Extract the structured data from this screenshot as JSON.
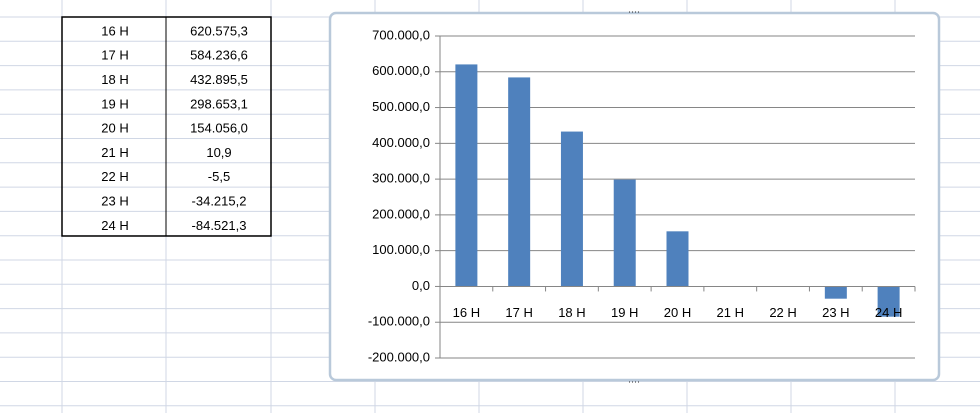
{
  "table": {
    "rows": [
      [
        "16 H",
        "620.575,3"
      ],
      [
        "17 H",
        "584.236,6"
      ],
      [
        "18 H",
        "432.895,5"
      ],
      [
        "19 H",
        "298.653,1"
      ],
      [
        "20 H",
        "154.056,0"
      ],
      [
        "21 H",
        "10,9"
      ],
      [
        "22 H",
        "-5,5"
      ],
      [
        "23 H",
        "-34.215,2"
      ],
      [
        "24 H",
        "-84.521,3"
      ]
    ]
  },
  "chart_data": {
    "type": "bar",
    "categories": [
      "16 H",
      "17 H",
      "18 H",
      "19 H",
      "20 H",
      "21 H",
      "22 H",
      "23 H",
      "24 H"
    ],
    "values": [
      620575.3,
      584236.6,
      432895.5,
      298653.1,
      154056.0,
      10.9,
      -5.5,
      -34215.2,
      -84521.3
    ],
    "color": "#4f81bd",
    "ylim": [
      -200000,
      700000
    ],
    "yticks": [
      {
        "value": -200000,
        "label": "-200.000,0"
      },
      {
        "value": -100000,
        "label": "-100.000,0"
      },
      {
        "value": 0,
        "label": "0,0"
      },
      {
        "value": 100000,
        "label": "100.000,0"
      },
      {
        "value": 200000,
        "label": "200.000,0"
      },
      {
        "value": 300000,
        "label": "300.000,0"
      },
      {
        "value": 400000,
        "label": "400.000,0"
      },
      {
        "value": 500000,
        "label": "500.000,0"
      },
      {
        "value": 600000,
        "label": "600.000,0"
      },
      {
        "value": 700000,
        "label": "700.000,0"
      }
    ],
    "grid": true
  }
}
